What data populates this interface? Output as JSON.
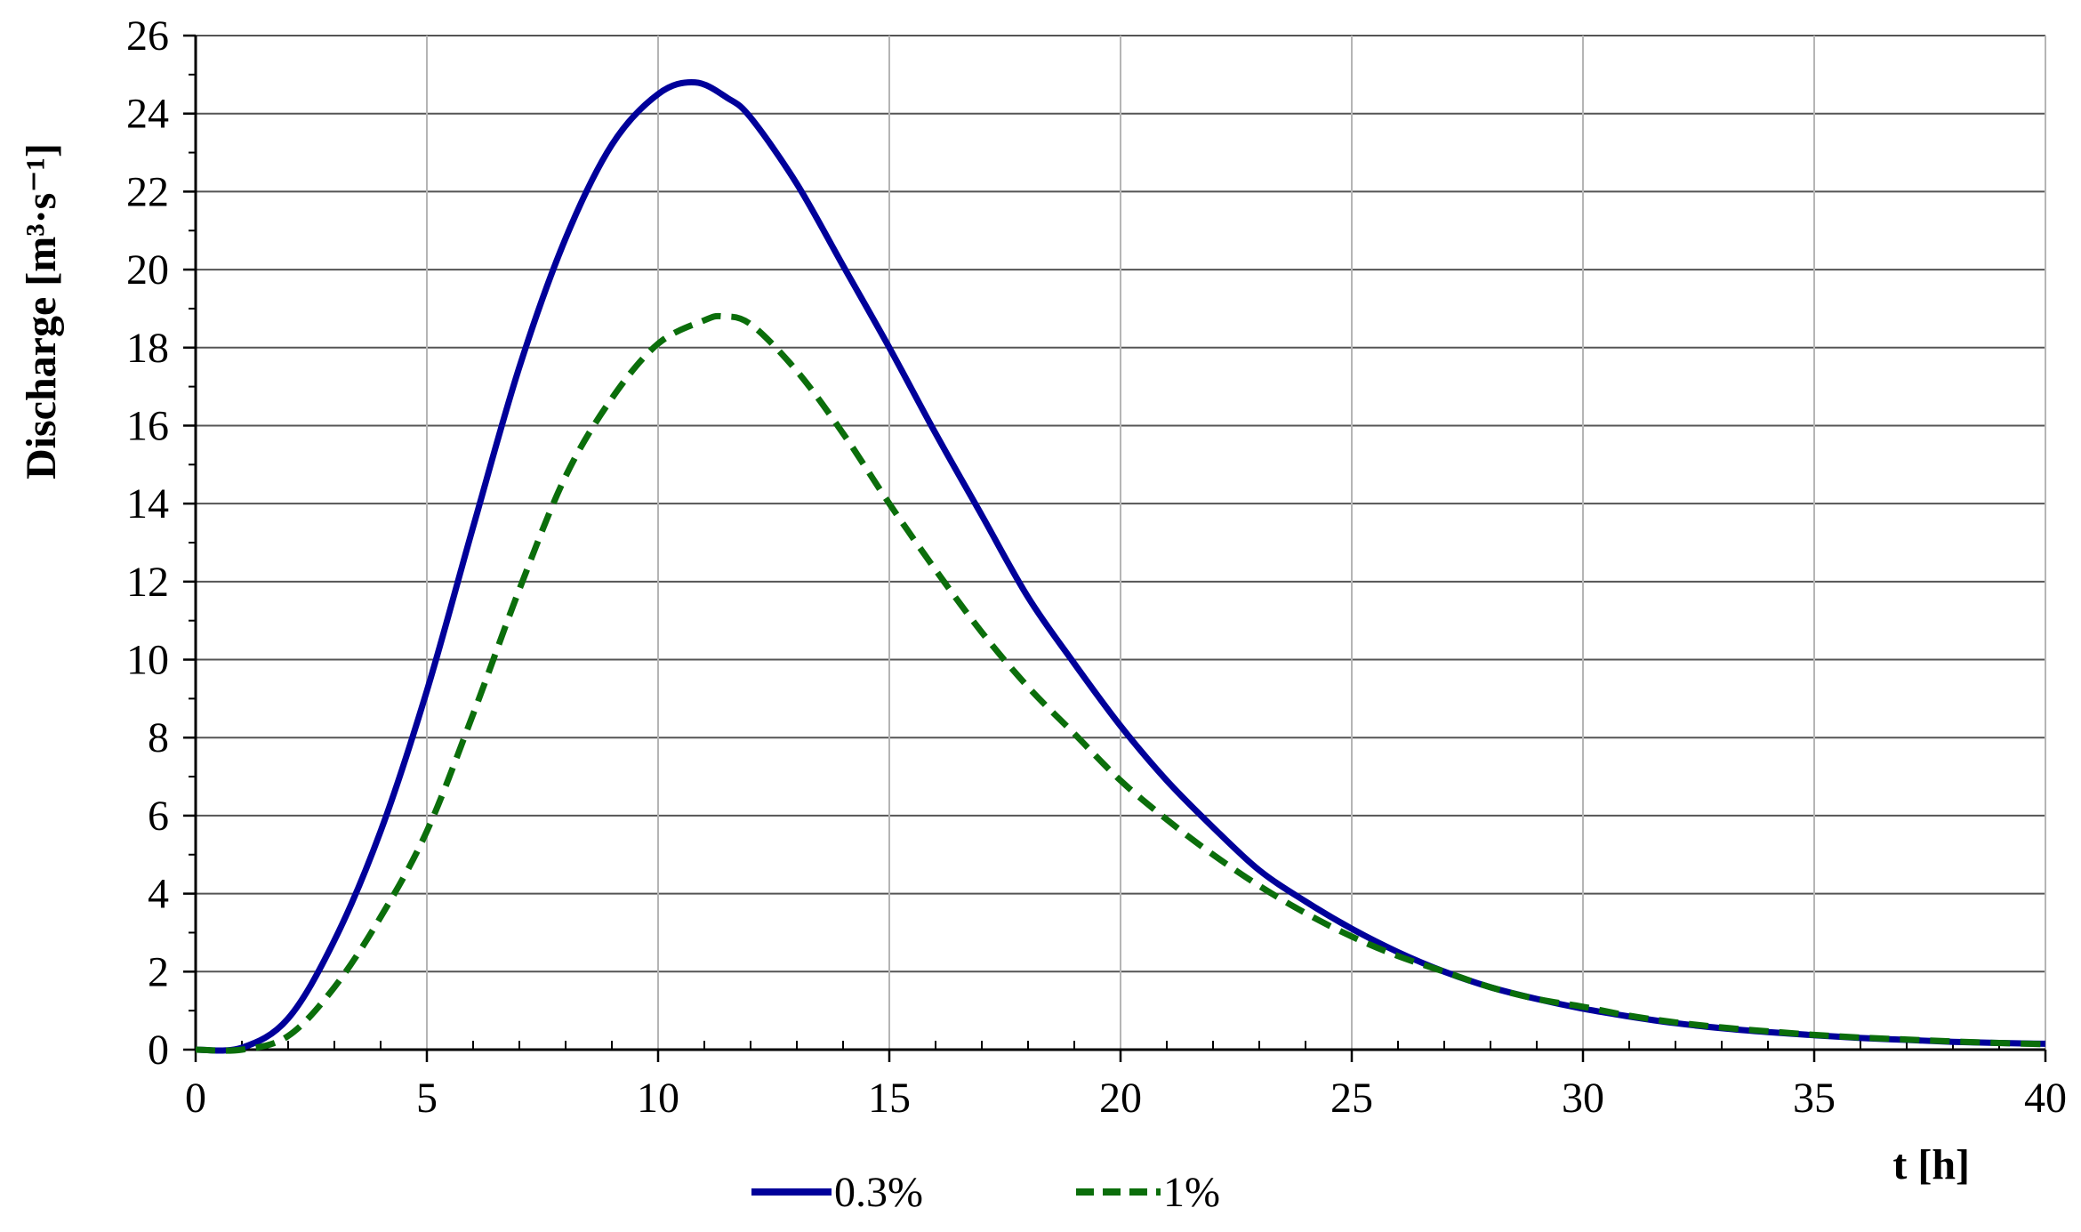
{
  "chart_data": {
    "type": "line",
    "title": "",
    "xlabel": "t [h]",
    "ylabel": "Discharge [m³·s⁻¹]",
    "xlim": [
      0,
      40
    ],
    "ylim": [
      0,
      26
    ],
    "x_ticks": [
      0,
      5,
      10,
      15,
      20,
      25,
      30,
      35,
      40
    ],
    "y_ticks": [
      0,
      2,
      4,
      6,
      8,
      10,
      12,
      14,
      16,
      18,
      20,
      22,
      24,
      26
    ],
    "grid": true,
    "legend_position": "bottom-center",
    "series": [
      {
        "name": "0.3%",
        "color": "#00009A",
        "style": "solid",
        "x": [
          0,
          1,
          2,
          3,
          4,
          5,
          6,
          7,
          8,
          9,
          10,
          10.8,
          11.5,
          12,
          13,
          14,
          15,
          16,
          17,
          18,
          19,
          20,
          21,
          22,
          23,
          24,
          25,
          26,
          27,
          28,
          29,
          30,
          31,
          32,
          33,
          34,
          35,
          36,
          37,
          38,
          39,
          40
        ],
        "values": [
          0,
          0.05,
          0.8,
          2.8,
          5.6,
          9.2,
          13.4,
          17.5,
          20.8,
          23.2,
          24.5,
          24.8,
          24.4,
          23.9,
          22.2,
          20.1,
          18.0,
          15.8,
          13.7,
          11.6,
          9.9,
          8.3,
          6.9,
          5.7,
          4.6,
          3.8,
          3.1,
          2.5,
          2.0,
          1.6,
          1.3,
          1.05,
          0.85,
          0.68,
          0.55,
          0.45,
          0.37,
          0.3,
          0.25,
          0.2,
          0.17,
          0.15
        ]
      },
      {
        "name": "1%",
        "color": "#0B6E0B",
        "style": "dashed",
        "x": [
          0,
          1,
          2,
          3,
          4,
          5,
          6,
          7,
          8,
          9,
          10,
          11,
          11.4,
          12,
          13,
          14,
          15,
          16,
          17,
          18,
          19,
          20,
          21,
          22,
          23,
          24,
          25,
          26,
          27,
          28,
          29,
          30,
          31,
          32,
          33,
          34,
          35,
          36,
          37,
          38,
          39,
          40
        ],
        "values": [
          0,
          0,
          0.35,
          1.6,
          3.4,
          5.6,
          8.6,
          11.8,
          14.7,
          16.7,
          18.1,
          18.7,
          18.8,
          18.6,
          17.4,
          15.8,
          14.0,
          12.3,
          10.7,
          9.3,
          8.1,
          6.9,
          5.9,
          5.0,
          4.2,
          3.5,
          2.9,
          2.4,
          2.0,
          1.6,
          1.3,
          1.1,
          0.87,
          0.7,
          0.57,
          0.47,
          0.38,
          0.31,
          0.26,
          0.21,
          0.17,
          0.14
        ]
      }
    ]
  }
}
